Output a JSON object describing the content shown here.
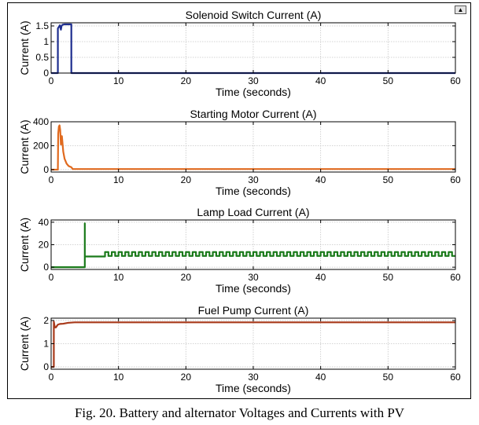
{
  "figure": {
    "caption": "Fig. 20. Battery and alternator Voltages and Currents with PV",
    "dock_button_glyph": "▲",
    "dock_icon": "dock-arrow-icon",
    "background": "#ffffff",
    "axes_background": "#ffffff"
  },
  "chart_data": [
    {
      "type": "line",
      "title": "Solenoid Switch Current (A)",
      "xlabel": "Time (seconds)",
      "ylabel": "Current (A)",
      "xlim": [
        0,
        60
      ],
      "ylim": [
        0,
        1.6
      ],
      "xticks": [
        0,
        10,
        20,
        30,
        40,
        50,
        60
      ],
      "yticks": [
        0,
        0.5,
        1,
        1.5
      ],
      "ytick_labels": [
        "0",
        "0.5",
        "1",
        "1.5"
      ],
      "grid": true,
      "series": [
        {
          "color": "#1f2f8f",
          "x": [
            0,
            1,
            1,
            1.3,
            1.45,
            1.55,
            1.7,
            2.0,
            2.5,
            3.0,
            3.0,
            60
          ],
          "y": [
            0,
            0,
            1.42,
            1.52,
            1.38,
            1.5,
            1.54,
            1.55,
            1.55,
            1.55,
            0,
            0
          ]
        }
      ]
    },
    {
      "type": "line",
      "title": "Starting Motor Current (A)",
      "xlabel": "Time (seconds)",
      "ylabel": "Current (A)",
      "xlim": [
        0,
        60
      ],
      "ylim": [
        -20,
        400
      ],
      "xticks": [
        0,
        10,
        20,
        30,
        40,
        50,
        60
      ],
      "yticks": [
        0,
        200,
        400
      ],
      "ytick_labels": [
        "0",
        "200",
        "400"
      ],
      "grid": true,
      "series": [
        {
          "color": "#e06a1f",
          "x": [
            0,
            1,
            1.05,
            1.15,
            1.25,
            1.35,
            1.45,
            1.6,
            1.8,
            2.0,
            2.3,
            2.6,
            3.0,
            3.2,
            60
          ],
          "y": [
            0,
            0,
            300,
            360,
            370,
            330,
            210,
            280,
            150,
            90,
            50,
            30,
            20,
            5,
            5
          ]
        }
      ]
    },
    {
      "type": "line",
      "title": "Lamp Load Current (A)",
      "xlabel": "Time (seconds)",
      "ylabel": "Current (A)",
      "xlim": [
        0,
        60
      ],
      "ylim": [
        -2,
        42
      ],
      "xticks": [
        0,
        10,
        20,
        30,
        40,
        50,
        60
      ],
      "yticks": [
        0,
        20,
        40
      ],
      "ytick_labels": [
        "0",
        "20",
        "40"
      ],
      "grid": true,
      "series": [
        {
          "color": "#1a7a1a",
          "pulse": {
            "start": 8,
            "end": 60,
            "period": 1,
            "low": 10,
            "high": 13.5
          },
          "x": [
            0,
            5,
            5,
            5,
            8
          ],
          "y": [
            0,
            0,
            39,
            9.5,
            9.5
          ]
        }
      ]
    },
    {
      "type": "line",
      "title": "Fuel Pump Current (A)",
      "xlabel": "Time (seconds)",
      "ylabel": "Current (A)",
      "xlim": [
        0,
        60
      ],
      "ylim": [
        -0.1,
        2.1
      ],
      "xticks": [
        0,
        10,
        20,
        30,
        40,
        50,
        60
      ],
      "yticks": [
        0,
        1,
        2
      ],
      "ytick_labels": [
        "0",
        "1",
        "2"
      ],
      "grid": true,
      "series": [
        {
          "color": "#a8391a",
          "x": [
            0,
            0.4,
            0.4,
            0.55,
            0.7,
            1.0,
            1.3,
            1.8,
            2.5,
            3.5,
            60
          ],
          "y": [
            0,
            0,
            1.95,
            1.7,
            1.7,
            1.82,
            1.85,
            1.86,
            1.9,
            1.92,
            1.92
          ]
        }
      ]
    }
  ]
}
